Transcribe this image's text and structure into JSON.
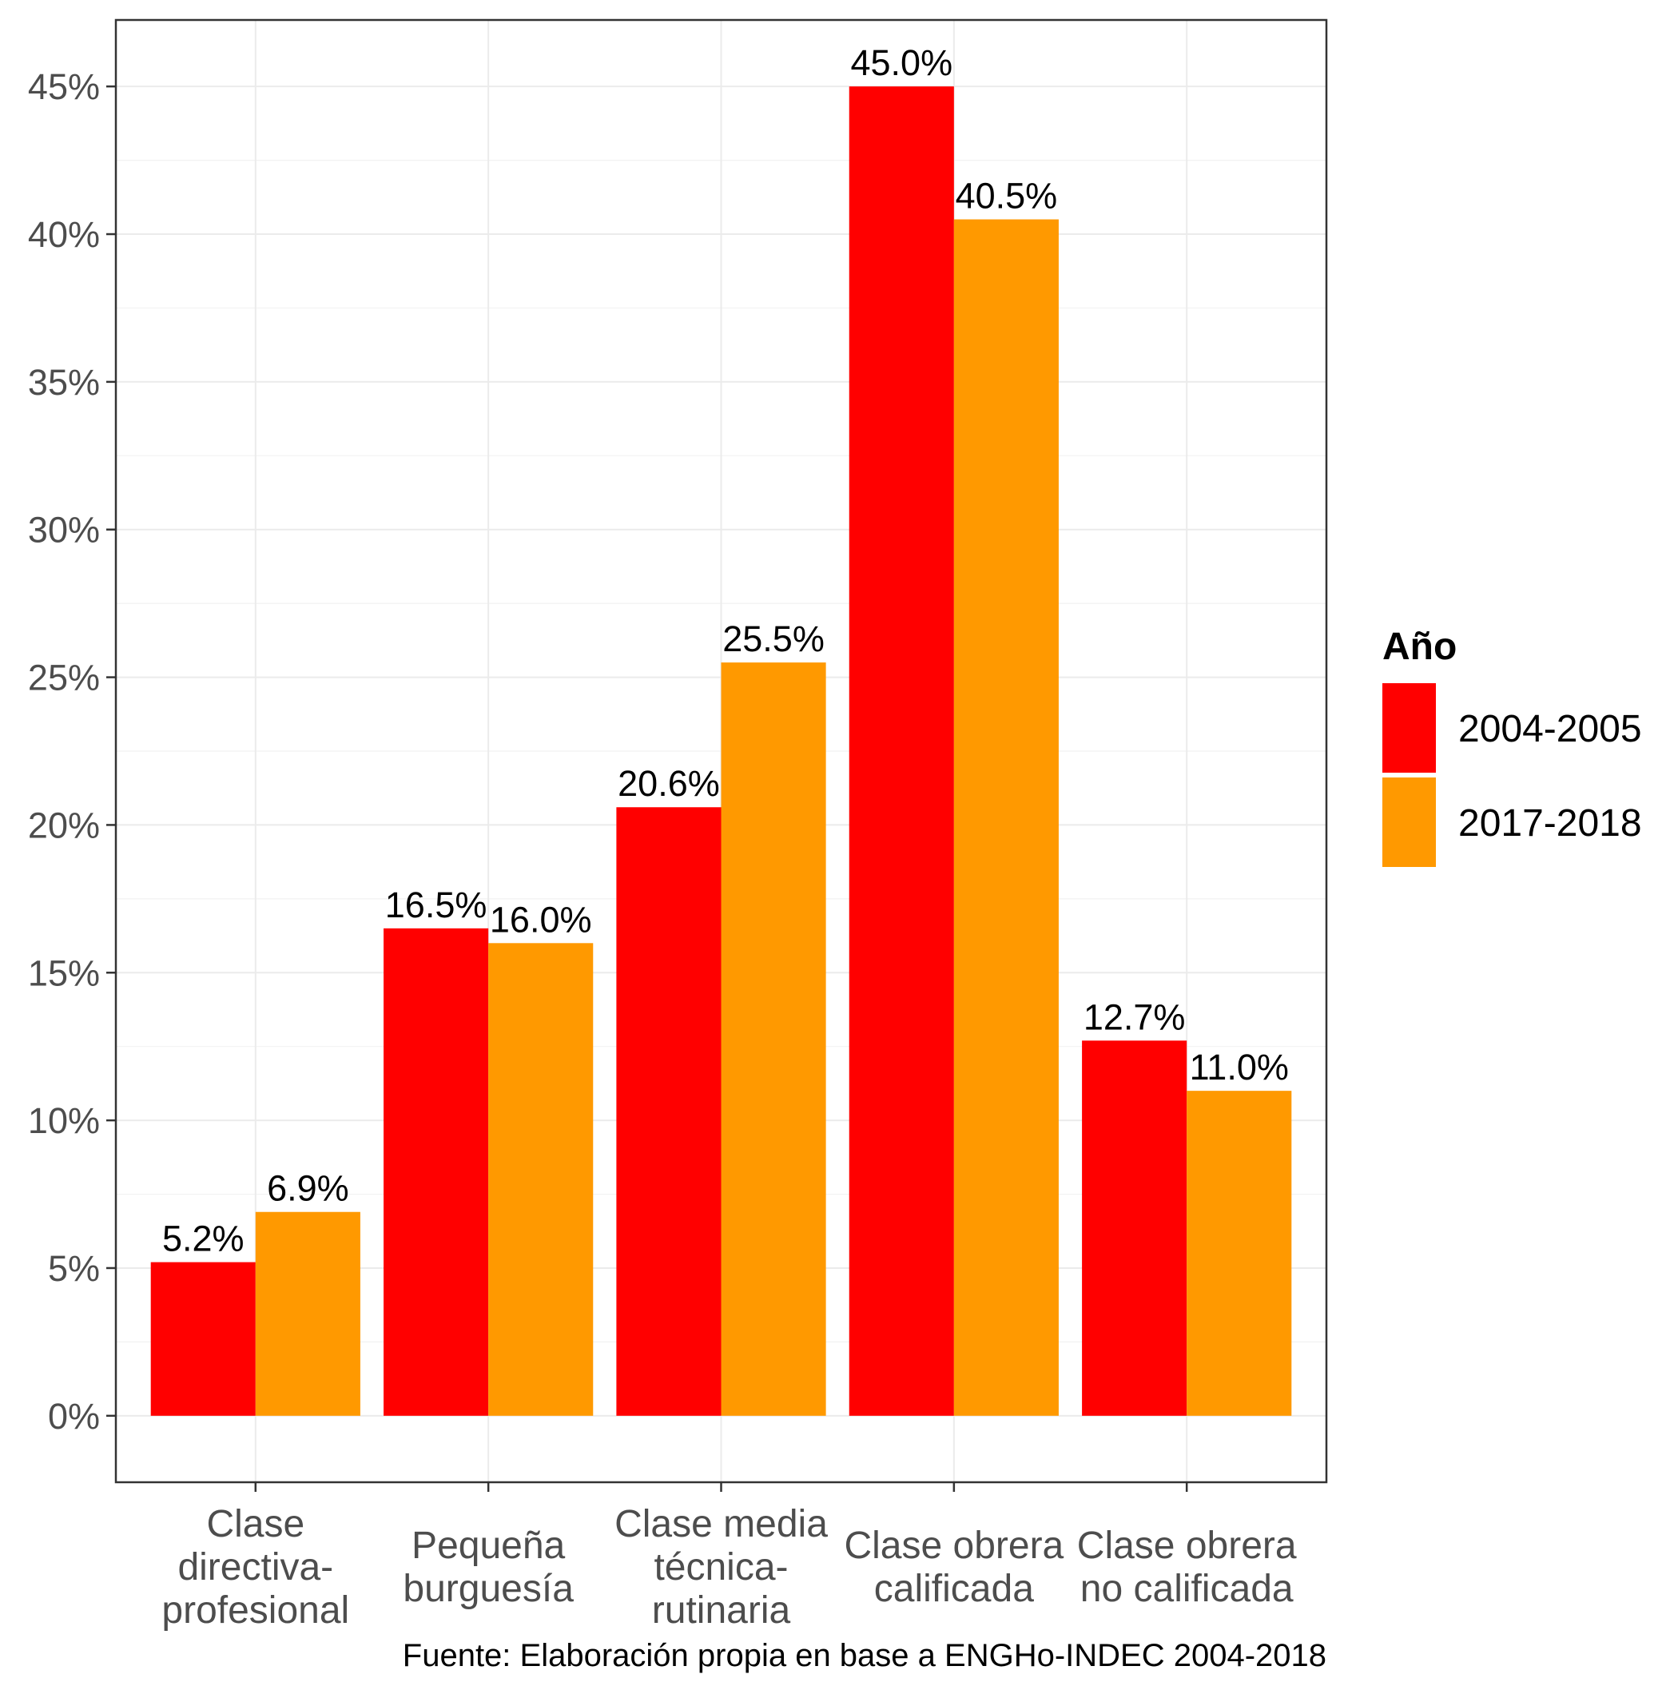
{
  "chart_data": {
    "type": "bar",
    "categories": [
      [
        "Clase",
        "directiva-",
        "profesional"
      ],
      [
        "Pequeña",
        "burguesía"
      ],
      [
        "Clase media",
        "técnica-",
        "rutinaria"
      ],
      [
        "Clase obrera",
        "calificada"
      ],
      [
        "Clase obrera",
        "no calificada"
      ]
    ],
    "series": [
      {
        "name": "2004-2005",
        "color": "#ff0000",
        "values": [
          5.2,
          16.5,
          20.6,
          45.0,
          12.7
        ],
        "labels": [
          "5.2%",
          "16.5%",
          "20.6%",
          "45.0%",
          "12.7%"
        ]
      },
      {
        "name": "2017-2018",
        "color": "#ff9900",
        "values": [
          6.9,
          16.0,
          25.5,
          40.5,
          11.0
        ],
        "labels": [
          "6.9%",
          "16.0%",
          "25.5%",
          "40.5%",
          "11.0%"
        ]
      }
    ],
    "y_ticks": [
      0,
      5,
      10,
      15,
      20,
      25,
      30,
      35,
      40,
      45
    ],
    "y_tick_labels": [
      "0%",
      "5%",
      "10%",
      "15%",
      "20%",
      "25%",
      "30%",
      "35%",
      "40%",
      "45%"
    ],
    "ylim": [
      -2.25,
      47.25
    ],
    "unit": "%",
    "grid": true,
    "legend": {
      "title": "Año",
      "position": "right"
    },
    "caption": "Fuente: Elaboración propia en base a ENGHo-INDEC 2004-2018"
  }
}
